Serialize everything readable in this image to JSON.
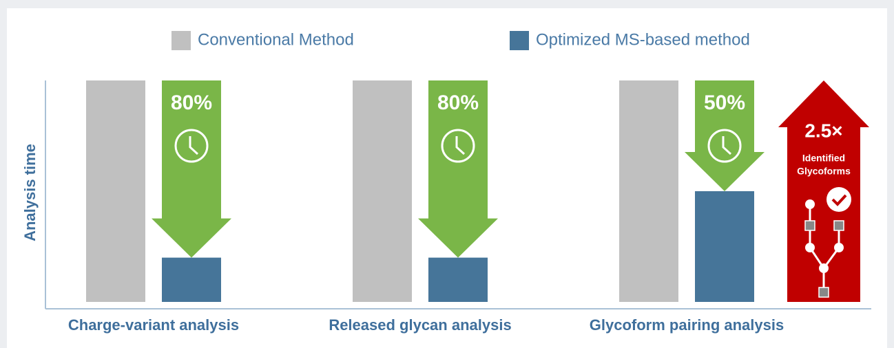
{
  "chart_data": {
    "type": "bar",
    "y_label": "Analysis time",
    "categories": [
      "Charge-variant analysis",
      "Released glycan analysis",
      "Glycoform pairing analysis"
    ],
    "series": [
      {
        "name": "Conventional Method",
        "color": "#c0c0c0",
        "values": [
          100,
          100,
          100
        ]
      },
      {
        "name": "Optimized MS-based method",
        "color": "#467599",
        "values": [
          20,
          20,
          50
        ]
      }
    ],
    "reduction": {
      "color": "#7ab648",
      "values": [
        80,
        80,
        50
      ],
      "value_labels": [
        "80%",
        "80%",
        "50%"
      ]
    },
    "ylim": [
      0,
      100
    ],
    "callout": {
      "color": "#c00000",
      "label": "2.5×",
      "text": [
        "Identified",
        "Glycoforms"
      ]
    }
  }
}
